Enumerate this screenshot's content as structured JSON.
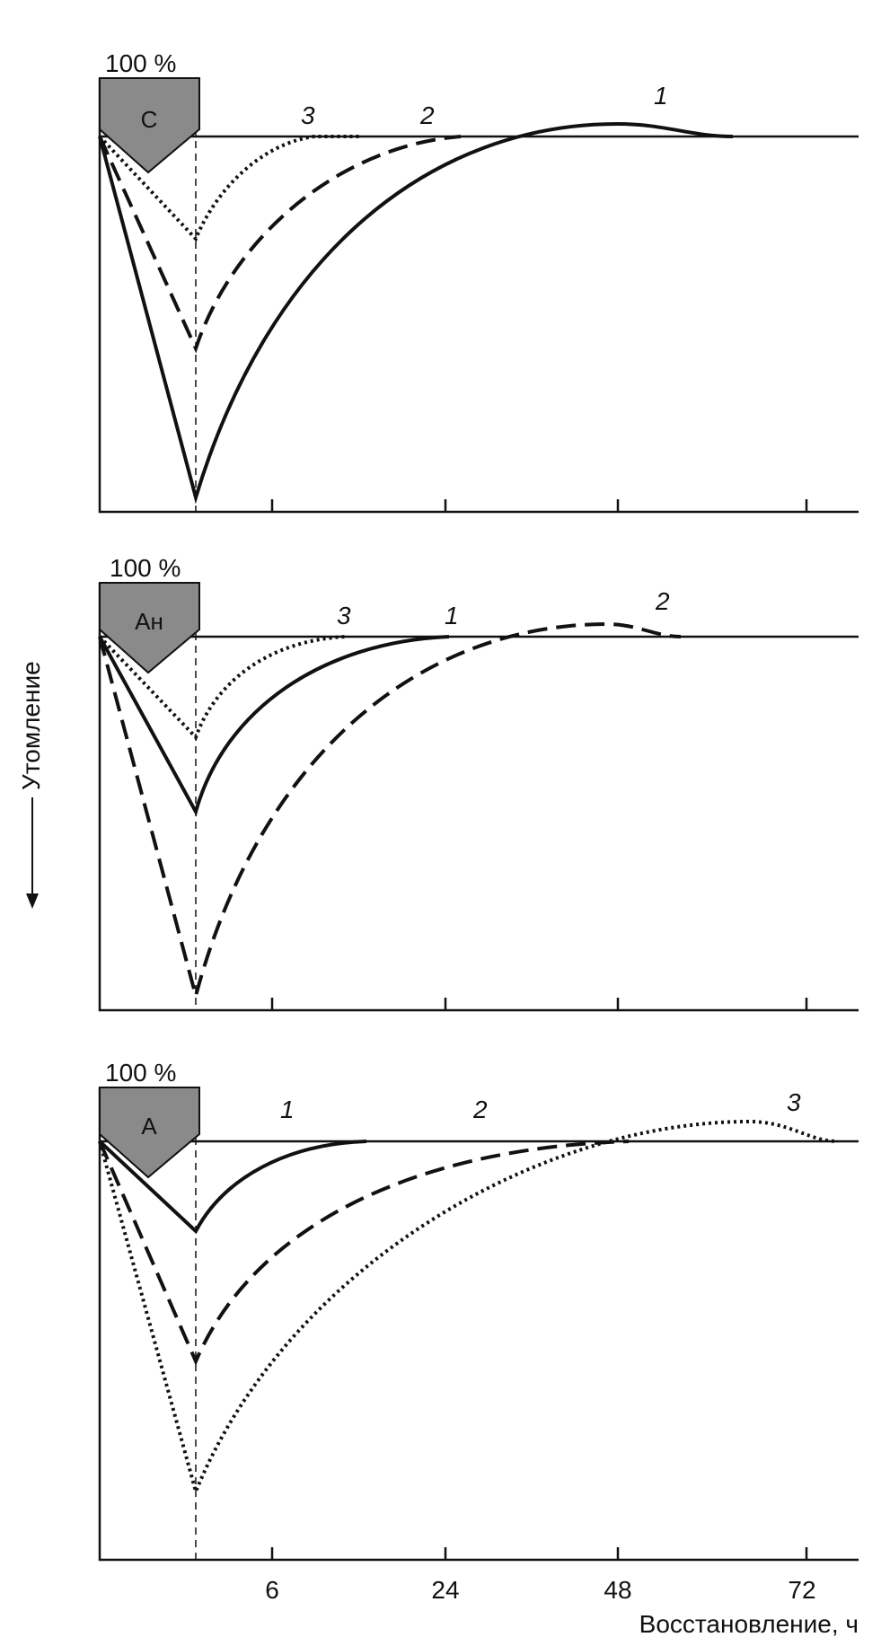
{
  "panels": [
    {
      "level": "100 %",
      "zone": "С",
      "curve_labels": [
        "3",
        "2",
        "1"
      ]
    },
    {
      "level": "100 %",
      "zone": "Ан",
      "curve_labels": [
        "3",
        "1",
        "2"
      ]
    },
    {
      "level": "100 %",
      "zone": "А",
      "curve_labels": [
        "1",
        "2",
        "3"
      ]
    }
  ],
  "x_ticks": [
    "6",
    "24",
    "48",
    "72"
  ],
  "x_axis_label": "Восстановление, ч",
  "y_axis_label": "Утомление"
}
